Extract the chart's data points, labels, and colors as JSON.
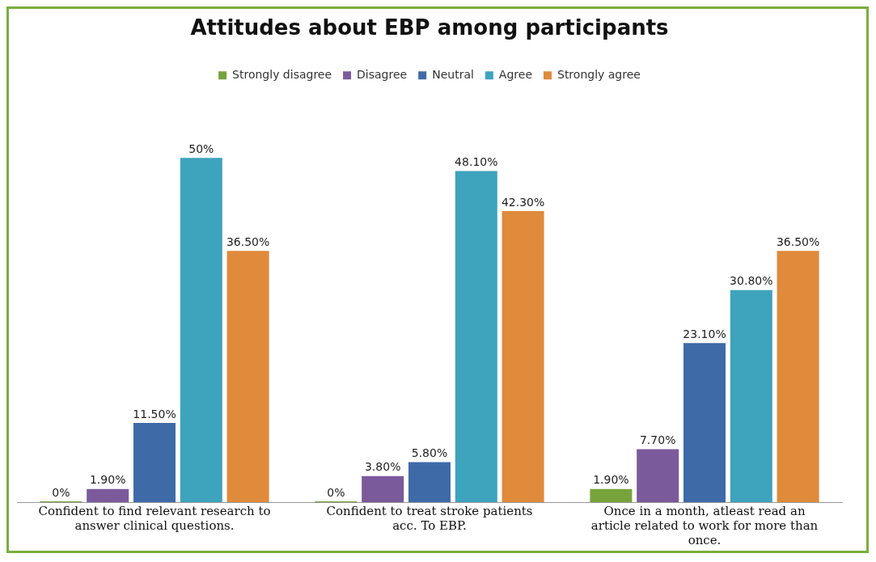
{
  "chart_data": {
    "type": "bar",
    "title": "Attitudes about EBP among participants",
    "categories": [
      "Confident to find relevant research to answer clinical questions.",
      "Confident to treat stroke patients acc. To EBP.",
      "Once in a month, atleast read an article related to work for more than once."
    ],
    "series": [
      {
        "name": "Strongly disagree",
        "color": "#77a33c",
        "values": [
          0,
          0,
          1.9
        ],
        "value_labels": [
          "0%",
          "0%",
          "1.90%"
        ]
      },
      {
        "name": "Disagree",
        "color": "#7b5a9c",
        "values": [
          1.9,
          3.8,
          7.7
        ],
        "value_labels": [
          "1.90%",
          "3.80%",
          "7.70%"
        ]
      },
      {
        "name": "Neutral",
        "color": "#3f6aa8",
        "values": [
          11.5,
          5.8,
          23.1
        ],
        "value_labels": [
          "11.50%",
          "5.80%",
          "23.10%"
        ]
      },
      {
        "name": "Agree",
        "color": "#3ea3bd",
        "values": [
          50,
          48.1,
          30.8
        ],
        "value_labels": [
          "50%",
          "48.10%",
          "30.80%"
        ]
      },
      {
        "name": "Strongly agree",
        "color": "#e08a3c",
        "values": [
          36.5,
          42.3,
          36.5
        ],
        "value_labels": [
          "36.50%",
          "42.30%",
          "36.50%"
        ]
      }
    ],
    "grid": false,
    "legend": "top"
  }
}
